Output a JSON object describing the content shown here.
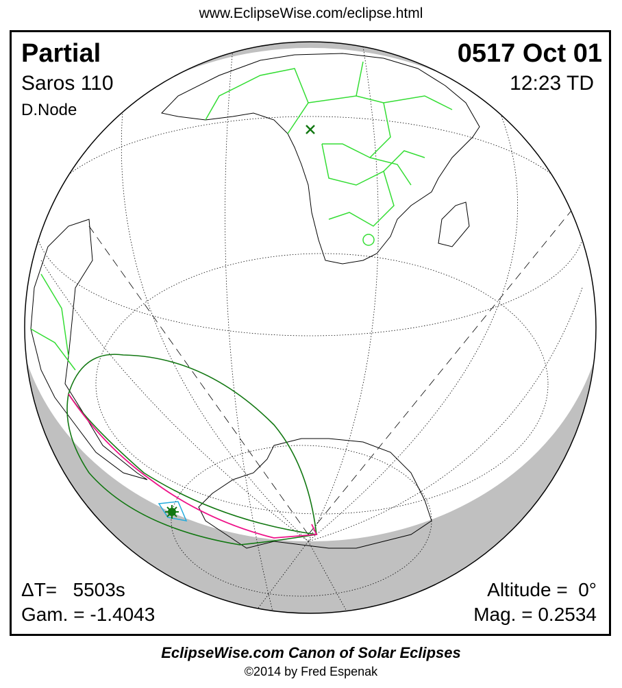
{
  "header": {
    "url": "www.EclipseWise.com/eclipse.html"
  },
  "eclipse": {
    "type": "Partial",
    "saros": "Saros 110",
    "node": "D.Node",
    "date": "0517 Oct 01",
    "time": "12:23 TD",
    "delta_t": "ΔT=   5503s",
    "gamma": "Gam. = -1.4043",
    "altitude": "Altitude =  0°",
    "magnitude": "Mag. = 0.2534"
  },
  "colors": {
    "borders": "#33dd33",
    "eclipse_limits": "#117711",
    "max_eclipse_curve": "#ee1188",
    "greatest_eclipse_box": "#22aadd",
    "night_shade": "#c0c0c0",
    "subsolar_marker": "#117711"
  },
  "markers": {
    "subsolar": "x-mark-icon",
    "greatest_eclipse": "star-burst-icon"
  },
  "footer": {
    "title": "EclipseWise.com Canon of Solar Eclipses",
    "copyright": "©2014 by Fred Espenak"
  }
}
